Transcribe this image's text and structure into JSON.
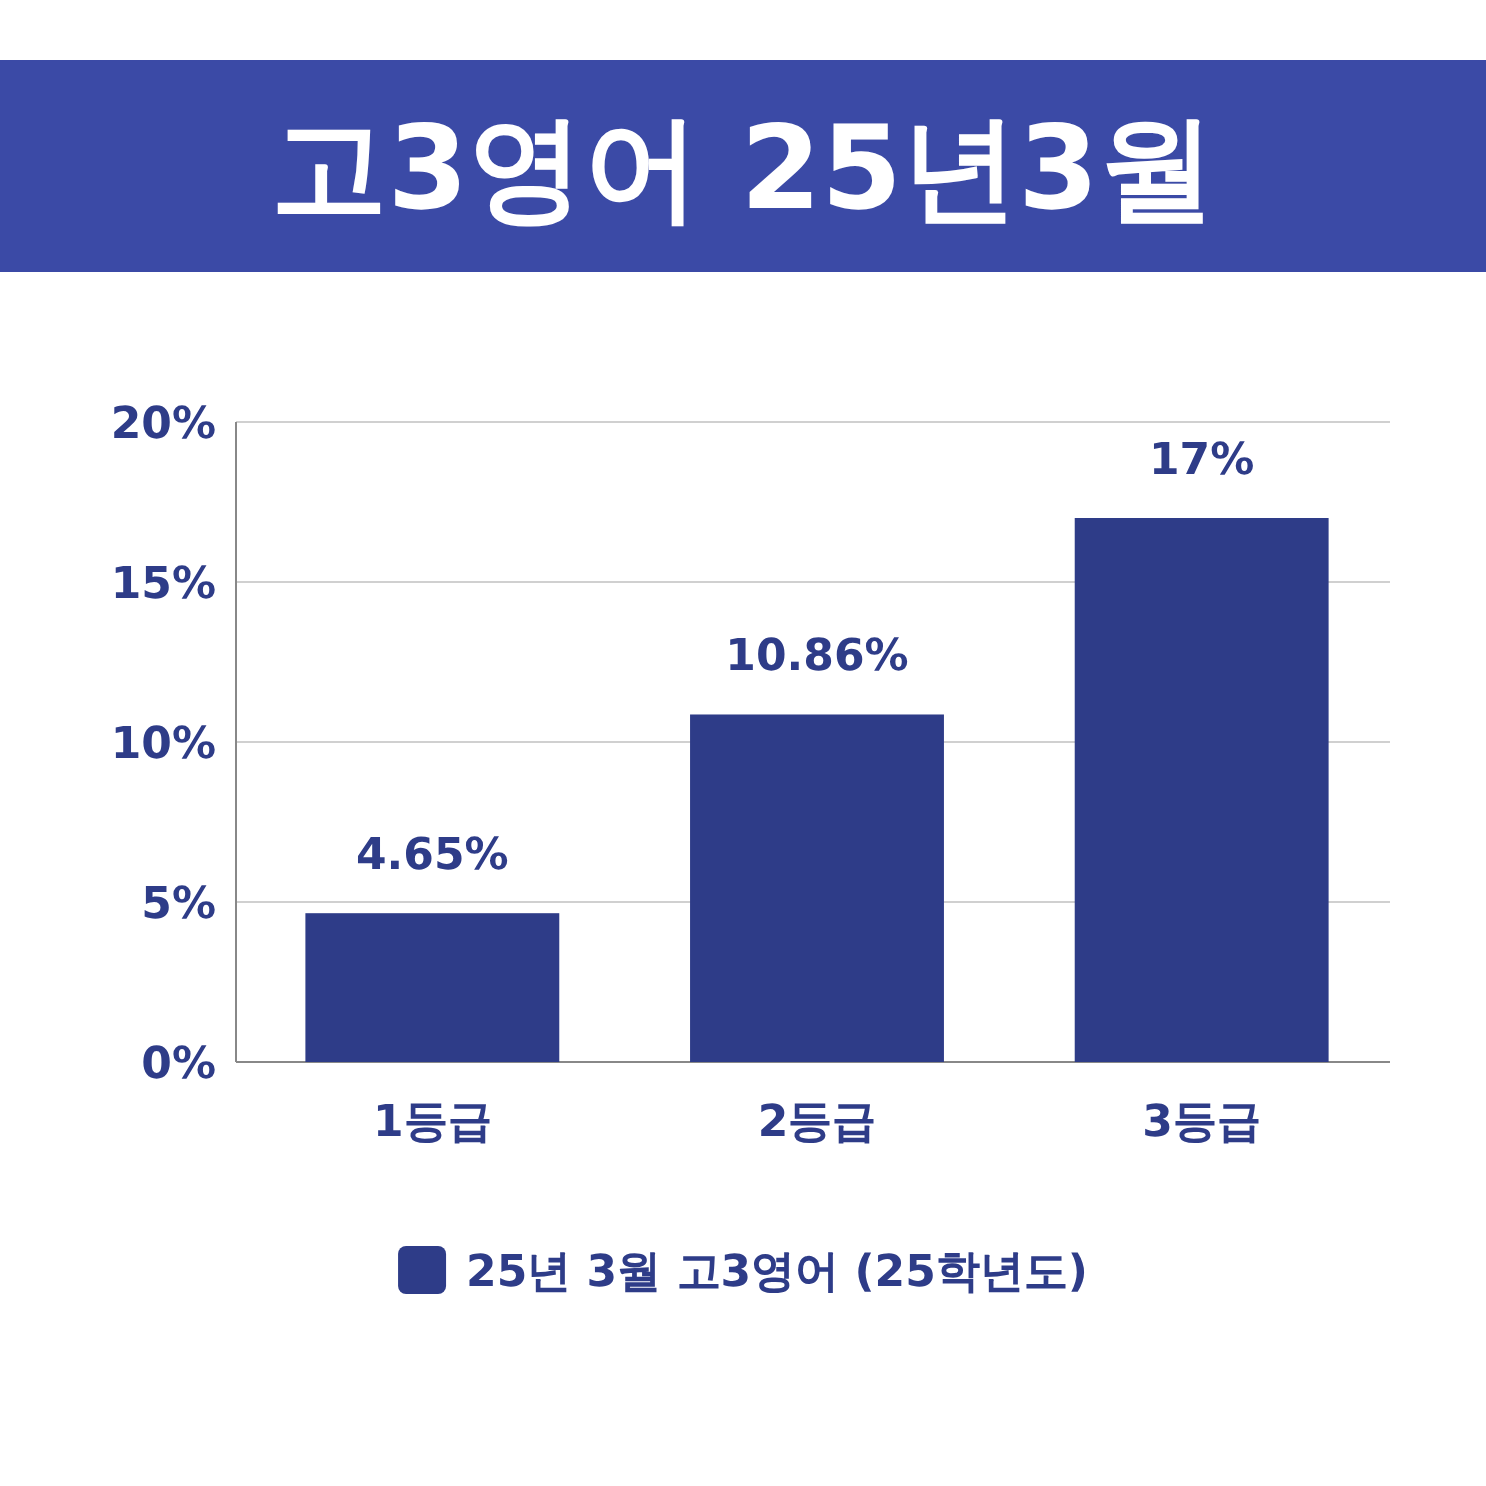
{
  "chart_data": {
    "type": "bar",
    "title": "고3영어 25년3월",
    "categories": [
      "1등급",
      "2등급",
      "3등급"
    ],
    "series": [
      {
        "name": "25년 3월 고3영어 (25학년도)",
        "color": "#2e3c88",
        "values": [
          4.65,
          10.86,
          17
        ],
        "value_labels": [
          "4.65%",
          "10.86%",
          "17%"
        ]
      }
    ],
    "ylim": [
      0,
      20
    ],
    "yticks": [
      {
        "value": 0,
        "label": "0%"
      },
      {
        "value": 5,
        "label": "5%"
      },
      {
        "value": 10,
        "label": "10%"
      },
      {
        "value": 15,
        "label": "15%"
      },
      {
        "value": 20,
        "label": "20%"
      }
    ],
    "grid": "y",
    "legend": "bottom"
  }
}
